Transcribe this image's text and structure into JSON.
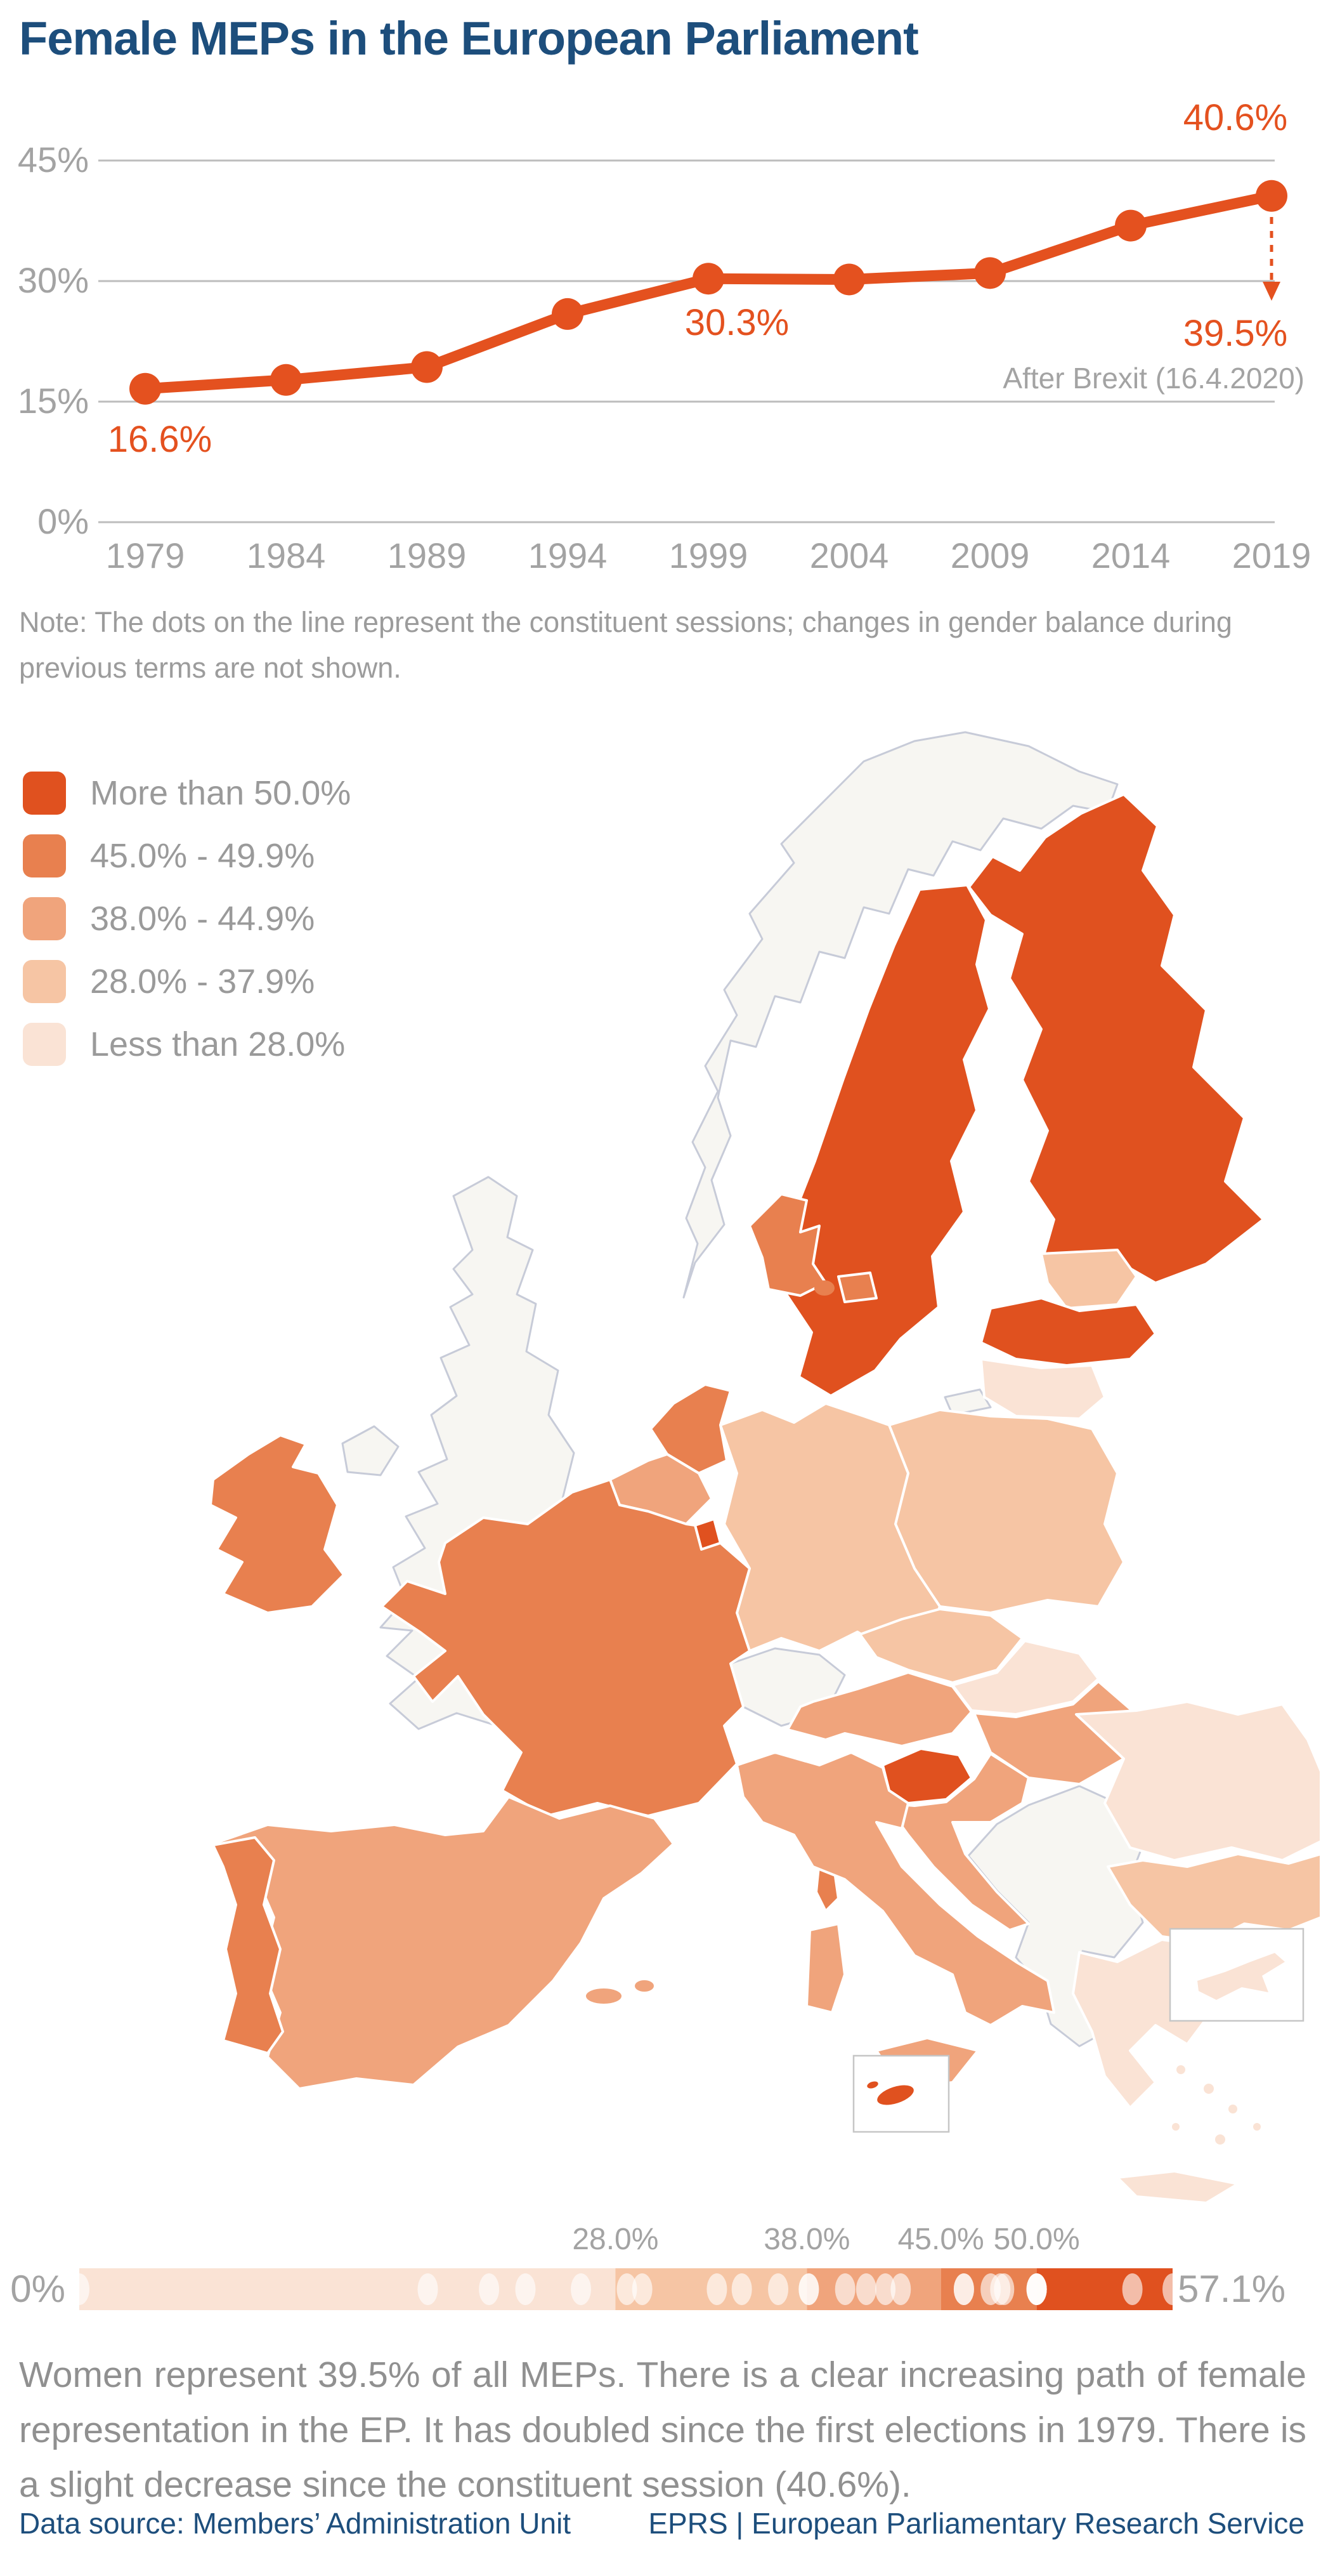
{
  "title": "Female MEPs in the European Parliament",
  "colors": {
    "title_blue": "#1d4e7c",
    "accent_orange": "#e4511f",
    "axis_gray": "#a3a3a3",
    "grid_gray": "#bdbdbd",
    "note_gray": "#9c9c9c",
    "summary_gray": "#909090",
    "non_eu_fill": "#f7f6f2",
    "non_eu_border": "#c7cbd8",
    "strip_dot": "rgba(255,255,255,0.62)"
  },
  "chart_data": {
    "type": "line",
    "title": "Female MEPs in the European Parliament",
    "xlabel": "",
    "ylabel": "",
    "x": [
      1979,
      1984,
      1989,
      1994,
      1999,
      2004,
      2009,
      2014,
      2019
    ],
    "values": [
      16.6,
      17.7,
      19.3,
      25.9,
      30.3,
      30.2,
      31.0,
      36.9,
      40.6
    ],
    "ylim": [
      0,
      48
    ],
    "grid": true,
    "yticks": [
      {
        "value": 0,
        "label": "0%"
      },
      {
        "value": 15,
        "label": "15%"
      },
      {
        "value": 30,
        "label": "30%"
      },
      {
        "value": 45,
        "label": "45%"
      }
    ],
    "annotations": [
      {
        "text": "16.6%",
        "year": 1979
      },
      {
        "text": "30.3%",
        "year": 1999
      },
      {
        "text": "40.6%",
        "year": 2019
      }
    ],
    "after_brexit": {
      "value": 39.5,
      "value_label": "39.5%",
      "caption": "After Brexit (16.4.2020)"
    }
  },
  "note": "Note: The dots on the line represent the constituent sessions; changes in gender balance during previous terms are not shown.",
  "legend": {
    "items": [
      {
        "key": "more_than_50",
        "label": "More than 50.0%",
        "color": "#e0511f"
      },
      {
        "key": "45_49",
        "label": "45.0% - 49.9%",
        "color": "#e8804f"
      },
      {
        "key": "38_44",
        "label": "38.0% - 44.9%",
        "color": "#f0a47c"
      },
      {
        "key": "28_37",
        "label": "28.0% - 37.9%",
        "color": "#f6c5a4"
      },
      {
        "key": "less_28",
        "label": "Less than 28.0%",
        "color": "#fae3d5"
      }
    ]
  },
  "map": {
    "countries": [
      {
        "name": "Sweden",
        "category": "more_than_50"
      },
      {
        "name": "Finland",
        "category": "more_than_50"
      },
      {
        "name": "Latvia",
        "category": "more_than_50"
      },
      {
        "name": "Slovenia",
        "category": "more_than_50"
      },
      {
        "name": "Luxembourg",
        "category": "more_than_50"
      },
      {
        "name": "Malta",
        "category": "more_than_50"
      },
      {
        "name": "Ireland",
        "category": "45_49"
      },
      {
        "name": "France",
        "category": "45_49"
      },
      {
        "name": "Denmark",
        "category": "45_49"
      },
      {
        "name": "Netherlands",
        "category": "45_49"
      },
      {
        "name": "Portugal",
        "category": "45_49"
      },
      {
        "name": "Spain",
        "category": "38_44"
      },
      {
        "name": "Italy",
        "category": "38_44"
      },
      {
        "name": "Austria",
        "category": "38_44"
      },
      {
        "name": "Hungary",
        "category": "38_44"
      },
      {
        "name": "Croatia",
        "category": "38_44"
      },
      {
        "name": "Belgium",
        "category": "38_44"
      },
      {
        "name": "Germany",
        "category": "28_37"
      },
      {
        "name": "Poland",
        "category": "28_37"
      },
      {
        "name": "Czechia",
        "category": "28_37"
      },
      {
        "name": "Estonia",
        "category": "28_37"
      },
      {
        "name": "Bulgaria",
        "category": "28_37"
      },
      {
        "name": "Greece",
        "category": "less_28"
      },
      {
        "name": "Romania",
        "category": "less_28"
      },
      {
        "name": "Lithuania",
        "category": "less_28"
      },
      {
        "name": "Slovakia",
        "category": "less_28"
      },
      {
        "name": "Cyprus",
        "category": "less_28"
      }
    ]
  },
  "strip": {
    "min_label": "0%",
    "max_label": "57.1%",
    "max_value": 57.1,
    "boundaries": [
      {
        "value": 28,
        "label": "28.0%"
      },
      {
        "value": 38,
        "label": "38.0%"
      },
      {
        "value": 45,
        "label": "45.0%"
      },
      {
        "value": 50,
        "label": "50.0%"
      }
    ],
    "segments_order": [
      "less_28",
      "28_37",
      "38_44",
      "45_49",
      "more_than_50"
    ],
    "dot_values": [
      0.0,
      18.2,
      21.4,
      23.3,
      26.2,
      28.6,
      29.4,
      33.3,
      34.6,
      36.5,
      38.1,
      38.1,
      40.0,
      41.1,
      42.1,
      42.9,
      46.2,
      46.2,
      47.6,
      48.1,
      48.3,
      50.0,
      50.0,
      50.0,
      50.0,
      55.0,
      57.1
    ]
  },
  "summary": "Women represent 39.5% of all MEPs. There is a clear increasing path of female representation in the EP. It has doubled since the first elections in 1979. There is a slight decrease since the constituent session (40.6%).",
  "footer": {
    "left": "Data source:  Members’ Administration Unit",
    "right": "EPRS | European Parliamentary Research Service"
  }
}
